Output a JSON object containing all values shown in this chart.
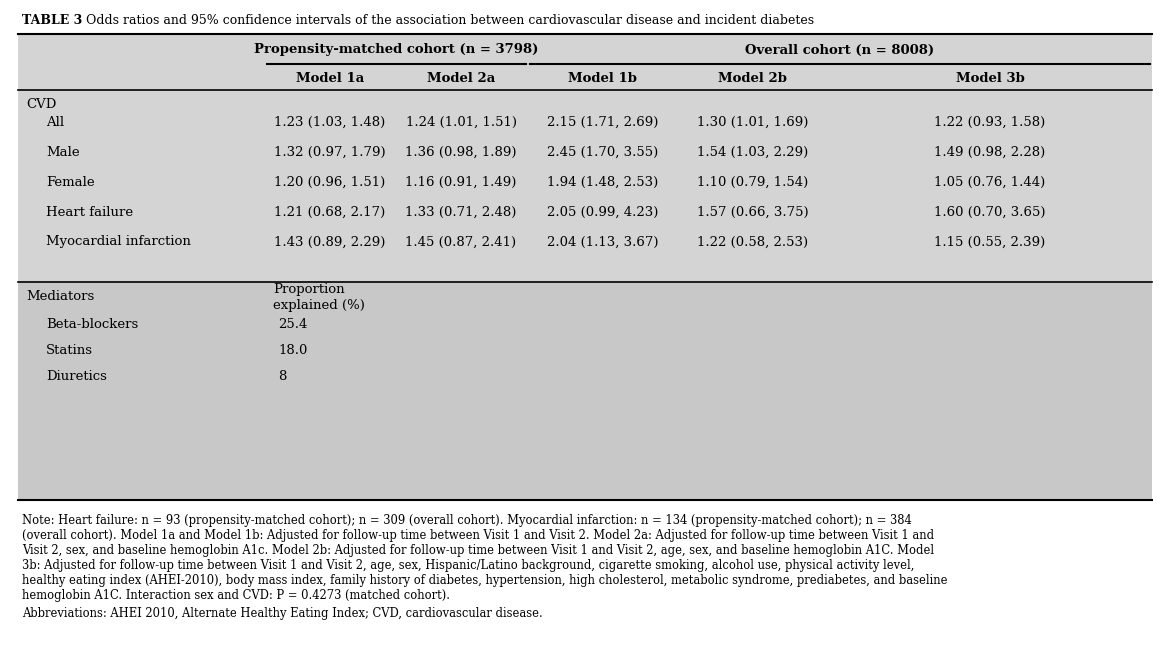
{
  "title_bold": "TABLE 3",
  "title_rest": "   Odds ratios and 95% confidence intervals of the association between cardiovascular disease and incident diabetes",
  "bg_color": "#d4d4d4",
  "med_bg_color": "#c8c8c8",
  "header1": "Propensity-matched cohort (n = 3798)",
  "header2": "Overall cohort (n = 8008)",
  "col_headers": [
    "Model 1a",
    "Model 2a",
    "Model 1b",
    "Model 2b",
    "Model 3b"
  ],
  "section_cvd": "CVD",
  "rows": [
    [
      "All",
      "1.23 (1.03, 1.48)",
      "1.24 (1.01, 1.51)",
      "2.15 (1.71, 2.69)",
      "1.30 (1.01, 1.69)",
      "1.22 (0.93, 1.58)"
    ],
    [
      "Male",
      "1.32 (0.97, 1.79)",
      "1.36 (0.98, 1.89)",
      "2.45 (1.70, 3.55)",
      "1.54 (1.03, 2.29)",
      "1.49 (0.98, 2.28)"
    ],
    [
      "Female",
      "1.20 (0.96, 1.51)",
      "1.16 (0.91, 1.49)",
      "1.94 (1.48, 2.53)",
      "1.10 (0.79, 1.54)",
      "1.05 (0.76, 1.44)"
    ],
    [
      "Heart failure",
      "1.21 (0.68, 2.17)",
      "1.33 (0.71, 2.48)",
      "2.05 (0.99, 4.23)",
      "1.57 (0.66, 3.75)",
      "1.60 (0.70, 3.65)"
    ],
    [
      "Myocardial infarction",
      "1.43 (0.89, 2.29)",
      "1.45 (0.87, 2.41)",
      "2.04 (1.13, 3.67)",
      "1.22 (0.58, 2.53)",
      "1.15 (0.55, 2.39)"
    ]
  ],
  "section_mediators": "Mediators",
  "mediator_rows": [
    [
      "Beta-blockers",
      "25.4"
    ],
    [
      "Statins",
      "18.0"
    ],
    [
      "Diuretics",
      "8"
    ]
  ],
  "note_lines": [
    "Note: Heart failure: n = 93 (propensity-matched cohort); n = 309 (overall cohort). Myocardial infarction: n = 134 (propensity-matched cohort); n = 384",
    "(overall cohort). Model 1a and Model 1b: Adjusted for follow-up time between Visit 1 and Visit 2. Model 2a: Adjusted for follow-up time between Visit 1 and",
    "Visit 2, sex, and baseline hemoglobin A1c. Model 2b: Adjusted for follow-up time between Visit 1 and Visit 2, age, sex, and baseline hemoglobin A1C. Model",
    "3b: Adjusted for follow-up time between Visit 1 and Visit 2, age, sex, Hispanic/Latino background, cigarette smoking, alcohol use, physical activity level,",
    "healthy eating index (AHEI-2010), body mass index, family history of diabetes, hypertension, high cholesterol, metabolic syndrome, prediabetes, and baseline",
    "hemoglobin A1C. Interaction sex and CVD: P = 0.4273 (matched cohort)."
  ],
  "abbrev_text": "Abbreviations: AHEI 2010, Alternate Healthy Eating Index; CVD, cardiovascular disease."
}
